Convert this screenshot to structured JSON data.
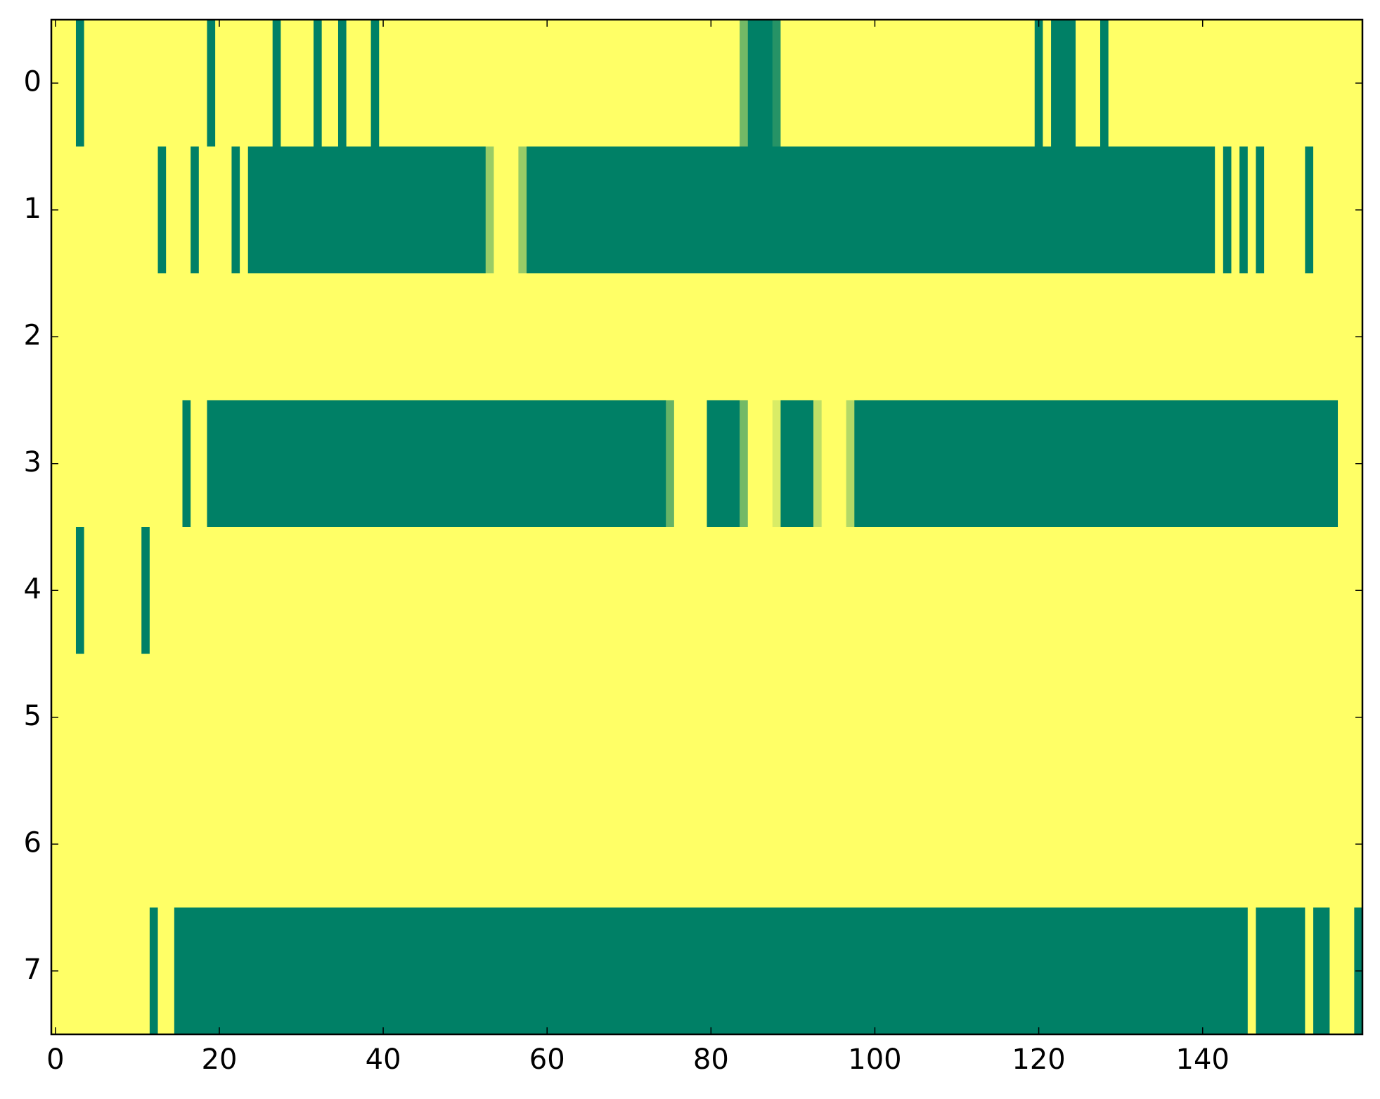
{
  "chart_data": {
    "type": "heatmap",
    "colormap": [
      "#008066",
      "#ffff66"
    ],
    "clim": [
      0,
      1
    ],
    "xlim": [
      -0.5,
      159.5
    ],
    "ylim": [
      7.5,
      -0.5
    ],
    "xticks": [
      0,
      20,
      40,
      60,
      80,
      100,
      120,
      140
    ],
    "yticks": [
      0,
      1,
      2,
      3,
      4,
      5,
      6,
      7
    ],
    "values": [
      [
        1,
        1,
        1,
        0,
        1,
        1,
        1,
        1,
        1,
        1,
        1,
        1,
        1,
        1,
        1,
        1,
        1,
        1,
        1,
        0,
        1,
        1,
        1,
        1,
        1,
        1,
        1,
        0,
        1,
        1,
        1,
        1,
        0,
        1,
        1,
        0,
        1,
        1,
        1,
        0,
        1,
        1,
        1,
        1,
        1,
        1,
        1,
        1,
        1,
        1,
        1,
        1,
        1,
        1,
        1,
        1,
        1,
        1,
        1,
        1,
        1,
        1,
        1,
        1,
        1,
        1,
        1,
        1,
        1,
        1,
        1,
        1,
        1,
        1,
        1,
        1,
        1,
        1,
        1,
        1,
        1,
        1,
        1,
        1,
        0.45,
        0,
        0,
        0,
        0.15,
        1,
        1,
        1,
        1,
        1,
        1,
        1,
        1,
        1,
        1,
        1,
        1,
        1,
        1,
        1,
        1,
        1,
        1,
        1,
        1,
        1,
        1,
        1,
        1,
        1,
        1,
        1,
        1,
        1,
        1,
        1,
        0,
        1,
        0,
        0,
        0,
        1,
        1,
        1,
        0,
        1,
        1,
        1,
        1,
        1,
        1,
        1,
        1,
        1,
        1,
        1,
        1,
        1,
        1,
        1,
        1,
        1,
        1,
        1,
        1,
        1,
        1,
        1,
        1,
        1,
        1,
        1,
        1,
        1,
        1,
        1
      ],
      [
        1,
        1,
        1,
        1,
        1,
        1,
        1,
        1,
        1,
        1,
        1,
        1,
        1,
        0,
        1,
        1,
        1,
        0,
        1,
        1,
        1,
        1,
        0,
        1,
        0,
        0,
        0,
        0,
        0,
        0,
        0,
        0,
        0,
        0,
        0,
        0,
        0,
        0,
        0,
        0,
        0,
        0,
        0,
        0,
        0,
        0,
        0,
        0,
        0,
        0,
        0,
        0,
        0,
        0.6,
        1,
        1,
        1,
        0.6,
        0,
        0,
        0,
        0,
        0,
        0,
        0,
        0,
        0,
        0,
        0,
        0,
        0,
        0,
        0,
        0,
        0,
        0,
        0,
        0,
        0,
        0,
        0,
        0,
        0,
        0,
        0,
        0,
        0,
        0,
        0,
        0,
        0,
        0,
        0,
        0,
        0,
        0,
        0,
        0,
        0,
        0,
        0,
        0,
        0,
        0,
        0,
        0,
        0,
        0,
        0,
        0,
        0,
        0,
        0,
        0,
        0,
        0,
        0,
        0,
        0,
        0,
        0,
        0,
        0,
        0,
        0,
        0,
        0,
        0,
        0,
        0,
        0,
        0,
        0,
        0,
        0,
        0,
        0,
        0,
        0,
        0,
        0,
        0,
        1,
        0,
        1,
        0,
        1,
        0,
        1,
        1,
        1,
        1,
        1,
        0,
        1,
        1,
        1,
        1,
        1,
        1
      ],
      [
        1,
        1,
        1,
        1,
        1,
        1,
        1,
        1,
        1,
        1,
        1,
        1,
        1,
        1,
        1,
        1,
        1,
        1,
        1,
        1,
        1,
        1,
        1,
        1,
        1,
        1,
        1,
        1,
        1,
        1,
        1,
        1,
        1,
        1,
        1,
        1,
        1,
        1,
        1,
        1,
        1,
        1,
        1,
        1,
        1,
        1,
        1,
        1,
        1,
        1,
        1,
        1,
        1,
        1,
        1,
        1,
        1,
        1,
        1,
        1,
        1,
        1,
        1,
        1,
        1,
        1,
        1,
        1,
        1,
        1,
        1,
        1,
        1,
        1,
        1,
        1,
        1,
        1,
        1,
        1,
        1,
        1,
        1,
        1,
        1,
        1,
        1,
        1,
        1,
        1,
        1,
        1,
        1,
        1,
        1,
        1,
        1,
        1,
        1,
        1,
        1,
        1,
        1,
        1,
        1,
        1,
        1,
        1,
        1,
        1,
        1,
        1,
        1,
        1,
        1,
        1,
        1,
        1,
        1,
        1,
        1,
        1,
        1,
        1,
        1,
        1,
        1,
        1,
        1,
        1,
        1,
        1,
        1,
        1,
        1,
        1,
        1,
        1,
        1,
        1,
        1,
        1,
        1,
        1,
        1,
        1,
        1,
        1,
        1,
        1,
        1,
        1,
        1,
        1,
        1,
        1,
        1,
        1,
        1,
        1
      ],
      [
        1,
        1,
        1,
        1,
        1,
        1,
        1,
        1,
        1,
        1,
        1,
        1,
        1,
        1,
        1,
        1,
        0,
        1,
        1,
        0,
        0,
        0,
        0,
        0,
        0,
        0,
        0,
        0,
        0,
        0,
        0,
        0,
        0,
        0,
        0,
        0,
        0,
        0,
        0,
        0,
        0,
        0,
        0,
        0,
        0,
        0,
        0,
        0,
        0,
        0,
        0,
        0,
        0,
        0,
        0,
        0,
        0,
        0,
        0,
        0,
        0,
        0,
        0,
        0,
        0,
        0,
        0,
        0,
        0,
        0,
        0,
        0,
        0,
        0,
        0,
        0.4,
        1,
        1,
        1,
        1,
        0,
        0,
        0,
        0,
        0.45,
        1,
        1,
        1,
        0.85,
        0,
        0,
        0,
        0,
        0.75,
        1,
        1,
        1,
        0.7,
        0,
        0,
        0,
        0,
        0,
        0,
        0,
        0,
        0,
        0,
        0,
        0,
        0,
        0,
        0,
        0,
        0,
        0,
        0,
        0,
        0,
        0,
        0,
        0,
        0,
        0,
        0,
        0,
        0,
        0,
        0,
        0,
        0,
        0,
        0,
        0,
        0,
        0,
        0,
        0,
        0,
        0,
        0,
        0,
        0,
        0,
        0,
        0,
        0,
        0,
        0,
        0,
        0,
        0,
        0,
        0,
        0,
        0,
        0,
        1,
        1,
        1
      ],
      [
        1,
        1,
        1,
        0,
        1,
        1,
        1,
        1,
        1,
        1,
        1,
        0,
        1,
        1,
        1,
        1,
        1,
        1,
        1,
        1,
        1,
        1,
        1,
        1,
        1,
        1,
        1,
        1,
        1,
        1,
        1,
        1,
        1,
        1,
        1,
        1,
        1,
        1,
        1,
        1,
        1,
        1,
        1,
        1,
        1,
        1,
        1,
        1,
        1,
        1,
        1,
        1,
        1,
        1,
        1,
        1,
        1,
        1,
        1,
        1,
        1,
        1,
        1,
        1,
        1,
        1,
        1,
        1,
        1,
        1,
        1,
        1,
        1,
        1,
        1,
        1,
        1,
        1,
        1,
        1,
        1,
        1,
        1,
        1,
        1,
        1,
        1,
        1,
        1,
        1,
        1,
        1,
        1,
        1,
        1,
        1,
        1,
        1,
        1,
        1,
        1,
        1,
        1,
        1,
        1,
        1,
        1,
        1,
        1,
        1,
        1,
        1,
        1,
        1,
        1,
        1,
        1,
        1,
        1,
        1,
        1,
        1,
        1,
        1,
        1,
        1,
        1,
        1,
        1,
        1,
        1,
        1,
        1,
        1,
        1,
        1,
        1,
        1,
        1,
        1,
        1,
        1,
        1,
        1,
        1,
        1,
        1,
        1,
        1,
        1,
        1,
        1,
        1,
        1,
        1,
        1,
        1,
        1,
        1,
        1
      ],
      [
        1,
        1,
        1,
        1,
        1,
        1,
        1,
        1,
        1,
        1,
        1,
        1,
        1,
        1,
        1,
        1,
        1,
        1,
        1,
        1,
        1,
        1,
        1,
        1,
        1,
        1,
        1,
        1,
        1,
        1,
        1,
        1,
        1,
        1,
        1,
        1,
        1,
        1,
        1,
        1,
        1,
        1,
        1,
        1,
        1,
        1,
        1,
        1,
        1,
        1,
        1,
        1,
        1,
        1,
        1,
        1,
        1,
        1,
        1,
        1,
        1,
        1,
        1,
        1,
        1,
        1,
        1,
        1,
        1,
        1,
        1,
        1,
        1,
        1,
        1,
        1,
        1,
        1,
        1,
        1,
        1,
        1,
        1,
        1,
        1,
        1,
        1,
        1,
        1,
        1,
        1,
        1,
        1,
        1,
        1,
        1,
        1,
        1,
        1,
        1,
        1,
        1,
        1,
        1,
        1,
        1,
        1,
        1,
        1,
        1,
        1,
        1,
        1,
        1,
        1,
        1,
        1,
        1,
        1,
        1,
        1,
        1,
        1,
        1,
        1,
        1,
        1,
        1,
        1,
        1,
        1,
        1,
        1,
        1,
        1,
        1,
        1,
        1,
        1,
        1,
        1,
        1,
        1,
        1,
        1,
        1,
        1,
        1,
        1,
        1,
        1,
        1,
        1,
        1,
        1,
        1,
        1,
        1,
        1,
        1
      ],
      [
        1,
        1,
        1,
        1,
        1,
        1,
        1,
        1,
        1,
        1,
        1,
        1,
        1,
        1,
        1,
        1,
        1,
        1,
        1,
        1,
        1,
        1,
        1,
        1,
        1,
        1,
        1,
        1,
        1,
        1,
        1,
        1,
        1,
        1,
        1,
        1,
        1,
        1,
        1,
        1,
        1,
        1,
        1,
        1,
        1,
        1,
        1,
        1,
        1,
        1,
        1,
        1,
        1,
        1,
        1,
        1,
        1,
        1,
        1,
        1,
        1,
        1,
        1,
        1,
        1,
        1,
        1,
        1,
        1,
        1,
        1,
        1,
        1,
        1,
        1,
        1,
        1,
        1,
        1,
        1,
        1,
        1,
        1,
        1,
        1,
        1,
        1,
        1,
        1,
        1,
        1,
        1,
        1,
        1,
        1,
        1,
        1,
        1,
        1,
        1,
        1,
        1,
        1,
        1,
        1,
        1,
        1,
        1,
        1,
        1,
        1,
        1,
        1,
        1,
        1,
        1,
        1,
        1,
        1,
        1,
        1,
        1,
        1,
        1,
        1,
        1,
        1,
        1,
        1,
        1,
        1,
        1,
        1,
        1,
        1,
        1,
        1,
        1,
        1,
        1,
        1,
        1,
        1,
        1,
        1,
        1,
        1,
        1,
        1,
        1,
        1,
        1,
        1,
        1,
        1,
        1,
        1,
        1,
        1,
        1
      ],
      [
        1,
        1,
        1,
        1,
        1,
        1,
        1,
        1,
        1,
        1,
        1,
        1,
        0,
        1,
        1,
        0,
        0,
        0,
        0,
        0,
        0,
        0,
        0,
        0,
        0,
        0,
        0,
        0,
        0,
        0,
        0,
        0,
        0,
        0,
        0,
        0,
        0,
        0,
        0,
        0,
        0,
        0,
        0,
        0,
        0,
        0,
        0,
        0,
        0,
        0,
        0,
        0,
        0,
        0,
        0,
        0,
        0,
        0,
        0,
        0,
        0,
        0,
        0,
        0,
        0,
        0,
        0,
        0,
        0,
        0,
        0,
        0,
        0,
        0,
        0,
        0,
        0,
        0,
        0,
        0,
        0,
        0,
        0,
        0,
        0,
        0,
        0,
        0,
        0,
        0,
        0,
        0,
        0,
        0,
        0,
        0,
        0,
        0,
        0,
        0,
        0,
        0,
        0,
        0,
        0,
        0,
        0,
        0,
        0,
        0,
        0,
        0,
        0,
        0,
        0,
        0,
        0,
        0,
        0,
        0,
        0,
        0,
        0,
        0,
        0,
        0,
        0,
        0,
        0,
        0,
        0,
        0,
        0,
        0,
        0,
        0,
        0,
        0,
        0,
        0,
        0,
        0,
        0,
        0,
        0,
        0,
        1,
        0,
        0,
        0,
        0,
        0,
        0,
        1,
        0,
        0,
        1,
        1,
        1,
        0
      ]
    ]
  }
}
